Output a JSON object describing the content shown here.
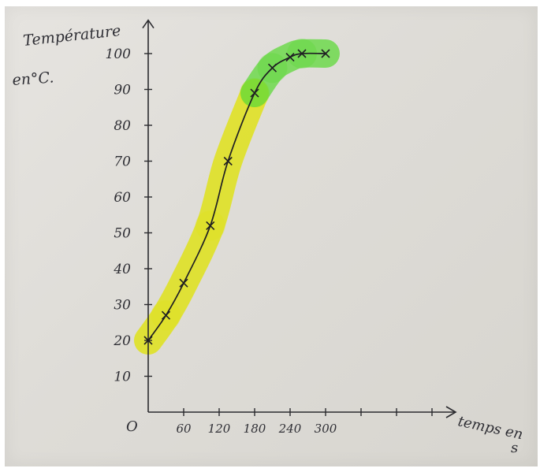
{
  "chart_data": {
    "type": "line",
    "ylabel_lines": [
      "Température",
      "en°C."
    ],
    "xlabel_lines": [
      "temps en",
      "s"
    ],
    "origin_label": "O",
    "x_ticks": [
      {
        "value": 60,
        "label": "60"
      },
      {
        "value": 120,
        "label": "120"
      },
      {
        "value": 180,
        "label": "180"
      },
      {
        "value": 240,
        "label": "240"
      },
      {
        "value": 300,
        "label": "300"
      }
    ],
    "y_ticks": [
      {
        "value": 10,
        "label": "10"
      },
      {
        "value": 20,
        "label": "20"
      },
      {
        "value": 30,
        "label": "30"
      },
      {
        "value": 40,
        "label": "40"
      },
      {
        "value": 50,
        "label": "50"
      },
      {
        "value": 60,
        "label": "60"
      },
      {
        "value": 70,
        "label": "70"
      },
      {
        "value": 80,
        "label": "80"
      },
      {
        "value": 90,
        "label": "90"
      },
      {
        "value": 100,
        "label": "100"
      }
    ],
    "xlim": [
      0,
      520
    ],
    "ylim": [
      0,
      108
    ],
    "series": [
      {
        "x": [
          0,
          30,
          60,
          105,
          135,
          180,
          210,
          240,
          260,
          300
        ],
        "y": [
          20,
          27,
          36,
          52,
          70,
          89,
          96,
          99,
          100,
          100
        ],
        "marker": "x",
        "color": "#1f1f23"
      }
    ],
    "highlights": [
      {
        "color": "#dfe21a",
        "x_range": [
          0,
          180
        ]
      },
      {
        "color": "#5fd83a",
        "x_range": [
          180,
          300
        ]
      }
    ],
    "grid": false
  }
}
